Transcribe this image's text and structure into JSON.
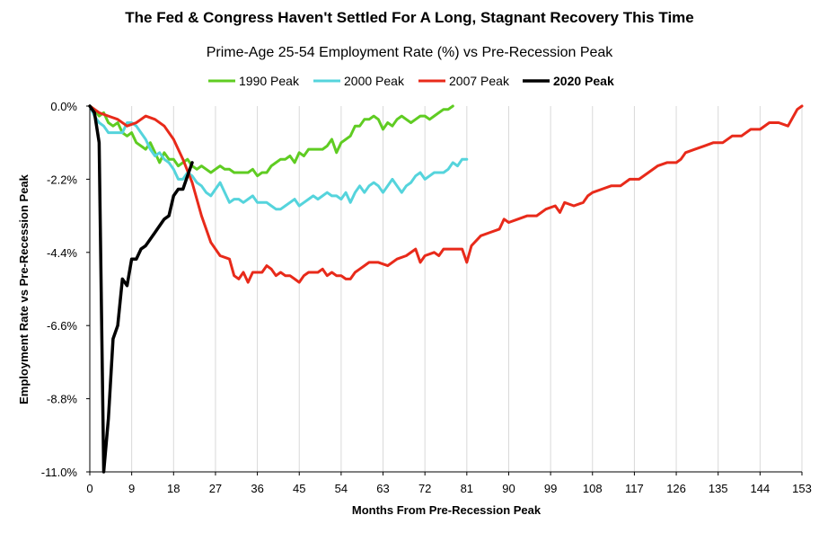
{
  "chart_data": {
    "type": "line",
    "title": "The Fed & Congress Haven't Settled For A Long, Stagnant Recovery This Time",
    "subtitle": "Prime-Age 25-54 Employment Rate (%) vs  Pre-Recession Peak",
    "xlabel": "Months From Pre-Recession Peak",
    "ylabel": "Employment Rate vs Pre-Recession Peak",
    "xlim": [
      0,
      153
    ],
    "ylim": [
      -11.0,
      0.0
    ],
    "x_ticks": [
      0,
      9,
      18,
      27,
      36,
      45,
      54,
      63,
      72,
      81,
      90,
      99,
      108,
      117,
      126,
      135,
      144,
      153
    ],
    "y_ticks": [
      "0.0%",
      "-2.2%",
      "-4.4%",
      "-6.6%",
      "-8.8%",
      "-11.0%"
    ],
    "y_tick_values": [
      0.0,
      -2.2,
      -4.4,
      -6.6,
      -8.8,
      -11.0
    ],
    "grid": "vertical",
    "legend_position": "top-center",
    "series": [
      {
        "name": "1990 Peak",
        "color": "#5fcc22",
        "bold": false,
        "points": [
          [
            0,
            0
          ],
          [
            1,
            -0.1
          ],
          [
            2,
            -0.3
          ],
          [
            3,
            -0.2
          ],
          [
            4,
            -0.5
          ],
          [
            5,
            -0.6
          ],
          [
            6,
            -0.5
          ],
          [
            7,
            -0.8
          ],
          [
            8,
            -0.9
          ],
          [
            9,
            -0.8
          ],
          [
            10,
            -1.1
          ],
          [
            11,
            -1.2
          ],
          [
            12,
            -1.3
          ],
          [
            13,
            -1.1
          ],
          [
            14,
            -1.4
          ],
          [
            15,
            -1.7
          ],
          [
            16,
            -1.4
          ],
          [
            17,
            -1.6
          ],
          [
            18,
            -1.6
          ],
          [
            19,
            -1.8
          ],
          [
            20,
            -1.7
          ],
          [
            21,
            -1.6
          ],
          [
            22,
            -1.8
          ],
          [
            23,
            -1.9
          ],
          [
            24,
            -1.8
          ],
          [
            25,
            -1.9
          ],
          [
            26,
            -2.0
          ],
          [
            27,
            -1.9
          ],
          [
            28,
            -1.8
          ],
          [
            29,
            -1.9
          ],
          [
            30,
            -1.9
          ],
          [
            31,
            -2.0
          ],
          [
            32,
            -2.0
          ],
          [
            33,
            -2.0
          ],
          [
            34,
            -2.0
          ],
          [
            35,
            -1.9
          ],
          [
            36,
            -2.1
          ],
          [
            37,
            -2.0
          ],
          [
            38,
            -2.0
          ],
          [
            39,
            -1.8
          ],
          [
            40,
            -1.7
          ],
          [
            41,
            -1.6
          ],
          [
            42,
            -1.6
          ],
          [
            43,
            -1.5
          ],
          [
            44,
            -1.7
          ],
          [
            45,
            -1.4
          ],
          [
            46,
            -1.5
          ],
          [
            47,
            -1.3
          ],
          [
            48,
            -1.3
          ],
          [
            49,
            -1.3
          ],
          [
            50,
            -1.3
          ],
          [
            51,
            -1.2
          ],
          [
            52,
            -1.0
          ],
          [
            53,
            -1.4
          ],
          [
            54,
            -1.1
          ],
          [
            55,
            -1.0
          ],
          [
            56,
            -0.9
          ],
          [
            57,
            -0.6
          ],
          [
            58,
            -0.6
          ],
          [
            59,
            -0.4
          ],
          [
            60,
            -0.4
          ],
          [
            61,
            -0.3
          ],
          [
            62,
            -0.4
          ],
          [
            63,
            -0.7
          ],
          [
            64,
            -0.5
          ],
          [
            65,
            -0.6
          ],
          [
            66,
            -0.4
          ],
          [
            67,
            -0.3
          ],
          [
            68,
            -0.4
          ],
          [
            69,
            -0.5
          ],
          [
            70,
            -0.4
          ],
          [
            71,
            -0.3
          ],
          [
            72,
            -0.3
          ],
          [
            73,
            -0.4
          ],
          [
            74,
            -0.3
          ],
          [
            75,
            -0.2
          ],
          [
            76,
            -0.1
          ],
          [
            77,
            -0.1
          ],
          [
            78,
            0.0
          ]
        ]
      },
      {
        "name": "2000 Peak",
        "color": "#55d4dc",
        "bold": false,
        "points": [
          [
            0,
            0
          ],
          [
            1,
            -0.3
          ],
          [
            2,
            -0.5
          ],
          [
            3,
            -0.6
          ],
          [
            4,
            -0.8
          ],
          [
            5,
            -0.8
          ],
          [
            6,
            -0.8
          ],
          [
            7,
            -0.8
          ],
          [
            8,
            -0.5
          ],
          [
            9,
            -0.5
          ],
          [
            10,
            -0.6
          ],
          [
            11,
            -0.8
          ],
          [
            12,
            -1.0
          ],
          [
            13,
            -1.3
          ],
          [
            14,
            -1.5
          ],
          [
            15,
            -1.4
          ],
          [
            16,
            -1.6
          ],
          [
            17,
            -1.7
          ],
          [
            18,
            -1.9
          ],
          [
            19,
            -2.2
          ],
          [
            20,
            -2.2
          ],
          [
            21,
            -2.0
          ],
          [
            22,
            -2.1
          ],
          [
            23,
            -2.3
          ],
          [
            24,
            -2.4
          ],
          [
            25,
            -2.6
          ],
          [
            26,
            -2.7
          ],
          [
            27,
            -2.5
          ],
          [
            28,
            -2.3
          ],
          [
            29,
            -2.6
          ],
          [
            30,
            -2.9
          ],
          [
            31,
            -2.8
          ],
          [
            32,
            -2.8
          ],
          [
            33,
            -2.9
          ],
          [
            34,
            -2.8
          ],
          [
            35,
            -2.7
          ],
          [
            36,
            -2.9
          ],
          [
            37,
            -2.9
          ],
          [
            38,
            -2.9
          ],
          [
            39,
            -3.0
          ],
          [
            40,
            -3.1
          ],
          [
            41,
            -3.1
          ],
          [
            42,
            -3.0
          ],
          [
            43,
            -2.9
          ],
          [
            44,
            -2.8
          ],
          [
            45,
            -3.0
          ],
          [
            46,
            -2.9
          ],
          [
            47,
            -2.8
          ],
          [
            48,
            -2.7
          ],
          [
            49,
            -2.8
          ],
          [
            50,
            -2.7
          ],
          [
            51,
            -2.6
          ],
          [
            52,
            -2.7
          ],
          [
            53,
            -2.7
          ],
          [
            54,
            -2.8
          ],
          [
            55,
            -2.6
          ],
          [
            56,
            -2.9
          ],
          [
            57,
            -2.6
          ],
          [
            58,
            -2.4
          ],
          [
            59,
            -2.6
          ],
          [
            60,
            -2.4
          ],
          [
            61,
            -2.3
          ],
          [
            62,
            -2.4
          ],
          [
            63,
            -2.6
          ],
          [
            64,
            -2.4
          ],
          [
            65,
            -2.2
          ],
          [
            66,
            -2.4
          ],
          [
            67,
            -2.6
          ],
          [
            68,
            -2.4
          ],
          [
            69,
            -2.3
          ],
          [
            70,
            -2.1
          ],
          [
            71,
            -2.0
          ],
          [
            72,
            -2.2
          ],
          [
            73,
            -2.1
          ],
          [
            74,
            -2.0
          ],
          [
            75,
            -2.0
          ],
          [
            76,
            -2.0
          ],
          [
            77,
            -1.9
          ],
          [
            78,
            -1.7
          ],
          [
            79,
            -1.8
          ],
          [
            80,
            -1.6
          ],
          [
            81,
            -1.6
          ]
        ]
      },
      {
        "name": "2007 Peak",
        "color": "#e82a1a",
        "bold": false,
        "points": [
          [
            0,
            0
          ],
          [
            2,
            -0.2
          ],
          [
            4,
            -0.3
          ],
          [
            6,
            -0.4
          ],
          [
            8,
            -0.6
          ],
          [
            10,
            -0.5
          ],
          [
            11,
            -0.4
          ],
          [
            12,
            -0.3
          ],
          [
            14,
            -0.4
          ],
          [
            16,
            -0.6
          ],
          [
            18,
            -1.0
          ],
          [
            20,
            -1.6
          ],
          [
            22,
            -2.3
          ],
          [
            24,
            -3.3
          ],
          [
            26,
            -4.1
          ],
          [
            28,
            -4.5
          ],
          [
            30,
            -4.6
          ],
          [
            31,
            -5.1
          ],
          [
            32,
            -5.2
          ],
          [
            33,
            -5.0
          ],
          [
            34,
            -5.3
          ],
          [
            35,
            -5.0
          ],
          [
            36,
            -5.0
          ],
          [
            37,
            -5.0
          ],
          [
            38,
            -4.8
          ],
          [
            39,
            -4.9
          ],
          [
            40,
            -5.1
          ],
          [
            41,
            -5.0
          ],
          [
            42,
            -5.1
          ],
          [
            43,
            -5.1
          ],
          [
            44,
            -5.2
          ],
          [
            45,
            -5.3
          ],
          [
            46,
            -5.1
          ],
          [
            47,
            -5.0
          ],
          [
            48,
            -5.0
          ],
          [
            49,
            -5.0
          ],
          [
            50,
            -4.9
          ],
          [
            51,
            -5.1
          ],
          [
            52,
            -5.0
          ],
          [
            53,
            -5.1
          ],
          [
            54,
            -5.1
          ],
          [
            55,
            -5.2
          ],
          [
            56,
            -5.2
          ],
          [
            57,
            -5.0
          ],
          [
            58,
            -4.9
          ],
          [
            59,
            -4.8
          ],
          [
            60,
            -4.7
          ],
          [
            62,
            -4.7
          ],
          [
            64,
            -4.8
          ],
          [
            66,
            -4.6
          ],
          [
            68,
            -4.5
          ],
          [
            70,
            -4.3
          ],
          [
            71,
            -4.7
          ],
          [
            72,
            -4.5
          ],
          [
            74,
            -4.4
          ],
          [
            75,
            -4.5
          ],
          [
            76,
            -4.3
          ],
          [
            78,
            -4.3
          ],
          [
            80,
            -4.3
          ],
          [
            81,
            -4.7
          ],
          [
            82,
            -4.2
          ],
          [
            84,
            -3.9
          ],
          [
            86,
            -3.8
          ],
          [
            88,
            -3.7
          ],
          [
            89,
            -3.4
          ],
          [
            90,
            -3.5
          ],
          [
            92,
            -3.4
          ],
          [
            94,
            -3.3
          ],
          [
            96,
            -3.3
          ],
          [
            98,
            -3.1
          ],
          [
            100,
            -3.0
          ],
          [
            101,
            -3.2
          ],
          [
            102,
            -2.9
          ],
          [
            104,
            -3.0
          ],
          [
            106,
            -2.9
          ],
          [
            107,
            -2.7
          ],
          [
            108,
            -2.6
          ],
          [
            110,
            -2.5
          ],
          [
            112,
            -2.4
          ],
          [
            114,
            -2.4
          ],
          [
            116,
            -2.2
          ],
          [
            118,
            -2.2
          ],
          [
            120,
            -2.0
          ],
          [
            122,
            -1.8
          ],
          [
            124,
            -1.7
          ],
          [
            126,
            -1.7
          ],
          [
            127,
            -1.6
          ],
          [
            128,
            -1.4
          ],
          [
            130,
            -1.3
          ],
          [
            132,
            -1.2
          ],
          [
            134,
            -1.1
          ],
          [
            136,
            -1.1
          ],
          [
            138,
            -0.9
          ],
          [
            140,
            -0.9
          ],
          [
            142,
            -0.7
          ],
          [
            144,
            -0.7
          ],
          [
            146,
            -0.5
          ],
          [
            148,
            -0.5
          ],
          [
            150,
            -0.6
          ],
          [
            152,
            -0.1
          ],
          [
            153,
            0.0
          ]
        ]
      },
      {
        "name": "2020 Peak",
        "color": "#000000",
        "bold": true,
        "points": [
          [
            0,
            0
          ],
          [
            1,
            -0.2
          ],
          [
            2,
            -1.1
          ],
          [
            3,
            -11.0
          ],
          [
            4,
            -9.4
          ],
          [
            5,
            -7.0
          ],
          [
            6,
            -6.6
          ],
          [
            7,
            -5.2
          ],
          [
            8,
            -5.4
          ],
          [
            9,
            -4.6
          ],
          [
            10,
            -4.6
          ],
          [
            11,
            -4.3
          ],
          [
            12,
            -4.2
          ],
          [
            13,
            -4.0
          ],
          [
            14,
            -3.8
          ],
          [
            15,
            -3.6
          ],
          [
            16,
            -3.4
          ],
          [
            17,
            -3.3
          ],
          [
            18,
            -2.7
          ],
          [
            19,
            -2.5
          ],
          [
            20,
            -2.5
          ],
          [
            21,
            -2.1
          ],
          [
            22,
            -1.7
          ]
        ]
      }
    ]
  }
}
